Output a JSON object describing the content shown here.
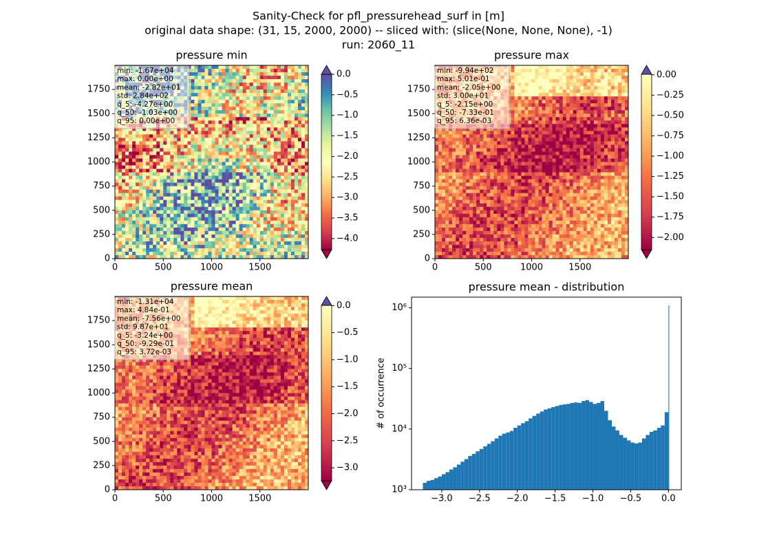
{
  "figure": {
    "title_lines": [
      "Sanity-Check for pfl_pressurehead_surf in [m]",
      "original data shape: (31, 15, 2000, 2000) -- sliced with: (slice(None, None, None), -1)",
      "run: 2060_11"
    ]
  },
  "chart_data": [
    {
      "type": "heatmap",
      "title": "pressure min",
      "xlim": [
        0,
        2000
      ],
      "ylim": [
        0,
        2000
      ],
      "xticks": [
        0,
        500,
        1000,
        1500
      ],
      "yticks": [
        0,
        250,
        500,
        750,
        1000,
        1250,
        1500,
        1750
      ],
      "stats": [
        "min: -1.67e+04",
        "max: 0.00e+00",
        "mean: -2.82e+01",
        "std: 2.84e+02",
        "q_5: -4.27e+00",
        "q_50: -1.03e+00",
        "q_95: 0.00e+00"
      ],
      "colorbar": {
        "clim": [
          -4.27,
          0.0
        ],
        "extend": "both",
        "colors": [
          "#9e0142",
          "#d53e4f",
          "#f46d43",
          "#fdae61",
          "#fee08b",
          "#ffffbf",
          "#e6f598",
          "#abdda4",
          "#66c2a5",
          "#3288bd",
          "#5e4fa2"
        ],
        "under_color": "#9e0142",
        "over_color": "#5e4fa2",
        "ticks": [
          {
            "value": 0,
            "label": "0.0"
          },
          {
            "value": -0.5,
            "label": "−0.5"
          },
          {
            "value": -1,
            "label": "−1.0"
          },
          {
            "value": -1.5,
            "label": "−1.5"
          },
          {
            "value": -2,
            "label": "−2.0"
          },
          {
            "value": -2.5,
            "label": "−2.5"
          },
          {
            "value": -3,
            "label": "−3.0"
          },
          {
            "value": -3.5,
            "label": "−3.5"
          },
          {
            "value": -4,
            "label": "−4.0"
          }
        ]
      }
    },
    {
      "type": "heatmap",
      "title": "pressure max",
      "xlim": [
        0,
        2000
      ],
      "ylim": [
        0,
        2000
      ],
      "xticks": [
        0,
        500,
        1000,
        1500
      ],
      "yticks": [
        0,
        250,
        500,
        750,
        1000,
        1250,
        1500,
        1750
      ],
      "stats": [
        "min: -9.94e+02",
        "max: 5.01e-01",
        "mean: -2.05e+00",
        "std: 3.00e+01",
        "q_5: -2.15e+00",
        "q_50: -7.33e-01",
        "q_95: 6.36e-03"
      ],
      "colorbar": {
        "clim": [
          -2.15,
          0.00636
        ],
        "extend": "both",
        "colors": [
          "#9e0142",
          "#d53e4f",
          "#f46d43",
          "#fdae61",
          "#fee08b",
          "#ffffbf"
        ],
        "under_color": "#9e0142",
        "over_color": "#5e4fa2",
        "ticks": [
          {
            "value": 0,
            "label": "0.00"
          },
          {
            "value": -0.25,
            "label": "−0.25"
          },
          {
            "value": -0.5,
            "label": "−0.50"
          },
          {
            "value": -0.75,
            "label": "−0.75"
          },
          {
            "value": -1,
            "label": "−1.00"
          },
          {
            "value": -1.25,
            "label": "−1.25"
          },
          {
            "value": -1.5,
            "label": "−1.50"
          },
          {
            "value": -1.75,
            "label": "−1.75"
          },
          {
            "value": -2,
            "label": "−2.00"
          }
        ]
      }
    },
    {
      "type": "heatmap",
      "title": "pressure mean",
      "xlim": [
        0,
        2000
      ],
      "ylim": [
        0,
        2000
      ],
      "xticks": [
        0,
        500,
        1000,
        1500
      ],
      "yticks": [
        0,
        250,
        500,
        750,
        1000,
        1250,
        1500,
        1750
      ],
      "stats": [
        "min: -1.31e+04",
        "max: 4.84e-01",
        "mean: -7.56e+00",
        "std: 9.87e+01",
        "q_5: -3.24e+00",
        "q_50: -9.29e-01",
        "q_95: 3.72e-03"
      ],
      "colorbar": {
        "clim": [
          -3.24,
          0.00372
        ],
        "extend": "both",
        "colors": [
          "#9e0142",
          "#d53e4f",
          "#f46d43",
          "#fdae61",
          "#fee08b",
          "#ffffbf"
        ],
        "under_color": "#9e0142",
        "over_color": "#5e4fa2",
        "ticks": [
          {
            "value": 0,
            "label": "0.0"
          },
          {
            "value": -0.5,
            "label": "−0.5"
          },
          {
            "value": -1,
            "label": "−1.0"
          },
          {
            "value": -1.5,
            "label": "−1.5"
          },
          {
            "value": -2,
            "label": "−2.0"
          },
          {
            "value": -2.5,
            "label": "−2.5"
          },
          {
            "value": -3,
            "label": "−3.0"
          }
        ]
      }
    },
    {
      "type": "histogram",
      "title": "pressure mean - distribution",
      "y_label": "# of occurrence",
      "color": "#1f77b4",
      "log_y": true,
      "bins": [
        -3.25,
        -3.2,
        -3.15,
        -3.1,
        -3.05,
        -3.0,
        -2.95,
        -2.9,
        -2.85,
        -2.8,
        -2.75,
        -2.7,
        -2.65,
        -2.6,
        -2.55,
        -2.5,
        -2.45,
        -2.4,
        -2.35,
        -2.3,
        -2.25,
        -2.2,
        -2.15,
        -2.1,
        -2.05,
        -2.0,
        -1.95,
        -1.9,
        -1.85,
        -1.8,
        -1.75,
        -1.7,
        -1.65,
        -1.6,
        -1.55,
        -1.5,
        -1.45,
        -1.4,
        -1.35,
        -1.3,
        -1.25,
        -1.2,
        -1.15,
        -1.1,
        -1.05,
        -1.0,
        -0.95,
        -0.9,
        -0.85,
        -0.8,
        -0.75,
        -0.7,
        -0.65,
        -0.6,
        -0.55,
        -0.5,
        -0.45,
        -0.4,
        -0.35,
        -0.3,
        -0.25,
        -0.2,
        -0.15,
        -0.1,
        -0.05,
        0.0,
        0.01
      ],
      "values": [
        1300,
        1400,
        1450,
        1550,
        1650,
        1800,
        1950,
        2150,
        2350,
        2600,
        2900,
        3200,
        3600,
        3900,
        4300,
        4700,
        5200,
        5700,
        6300,
        7000,
        7800,
        8400,
        8800,
        9300,
        10500,
        11500,
        12500,
        13500,
        15000,
        16500,
        18000,
        19500,
        21000,
        22000,
        23000,
        24000,
        25000,
        25500,
        26000,
        27000,
        27500,
        27000,
        29000,
        30000,
        28000,
        26000,
        27000,
        29000,
        20000,
        14000,
        11000,
        9500,
        8000,
        7200,
        6500,
        6000,
        5800,
        6000,
        7000,
        8000,
        9000,
        9500,
        10500,
        11500,
        19000,
        1100000
      ],
      "xlim": [
        -3.4,
        0.17
      ],
      "ylim": [
        1000,
        1500000
      ],
      "xticks": [
        {
          "value": -3,
          "label": "−3.0"
        },
        {
          "value": -2.5,
          "label": "−2.5"
        },
        {
          "value": -2,
          "label": "−2.0"
        },
        {
          "value": -1.5,
          "label": "−1.5"
        },
        {
          "value": -1,
          "label": "−1.0"
        },
        {
          "value": -0.5,
          "label": "−0.5"
        },
        {
          "value": 0,
          "label": "0.0"
        }
      ],
      "yticks": [
        {
          "value": 1000,
          "label": "10³"
        },
        {
          "value": 10000,
          "label": "10⁴"
        },
        {
          "value": 100000,
          "label": "10⁵"
        },
        {
          "value": 1000000,
          "label": "10⁶"
        }
      ]
    }
  ]
}
